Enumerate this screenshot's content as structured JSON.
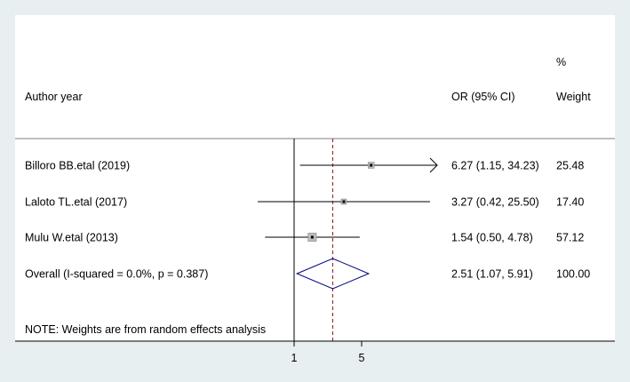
{
  "chart_data": {
    "type": "forest",
    "headers": {
      "label": "Author year",
      "estimate": "OR (95% CI)",
      "weight_line1": "%",
      "weight_line2": "Weight"
    },
    "studies": [
      {
        "label": "Billoro BB.etal (2019)",
        "or": 6.27,
        "ci_low": 1.15,
        "ci_high": 34.23,
        "ci_text": "6.27 (1.15, 34.23)",
        "weight": 25.48,
        "weight_text": "25.48",
        "arrow_right": true
      },
      {
        "label": "Laloto TL.etal (2017)",
        "or": 3.27,
        "ci_low": 0.42,
        "ci_high": 25.5,
        "ci_text": "3.27 (0.42, 25.50)",
        "weight": 17.4,
        "weight_text": "17.40",
        "arrow_right": false
      },
      {
        "label": "Mulu W.etal  (2013)",
        "or": 1.54,
        "ci_low": 0.5,
        "ci_high": 4.78,
        "ci_text": "1.54 (0.50, 4.78)",
        "weight": 57.12,
        "weight_text": "57.12",
        "arrow_right": false
      }
    ],
    "overall": {
      "label": "Overall  (I-squared = 0.0%, p = 0.387)",
      "or": 2.51,
      "ci_low": 1.07,
      "ci_high": 5.91,
      "ci_text": "2.51 (1.07, 5.91)",
      "weight_text": "100.00"
    },
    "note": "NOTE: Weights are from random effects analysis",
    "x_ticks": [
      1,
      5
    ],
    "null_line": 1,
    "x_scale": "log",
    "colors": {
      "line": "#000000",
      "diamond": "#000080",
      "dashed": "#8b1a1a",
      "box": "#bdbdbd",
      "axis": "#000000",
      "background": "#e8eff1"
    }
  }
}
